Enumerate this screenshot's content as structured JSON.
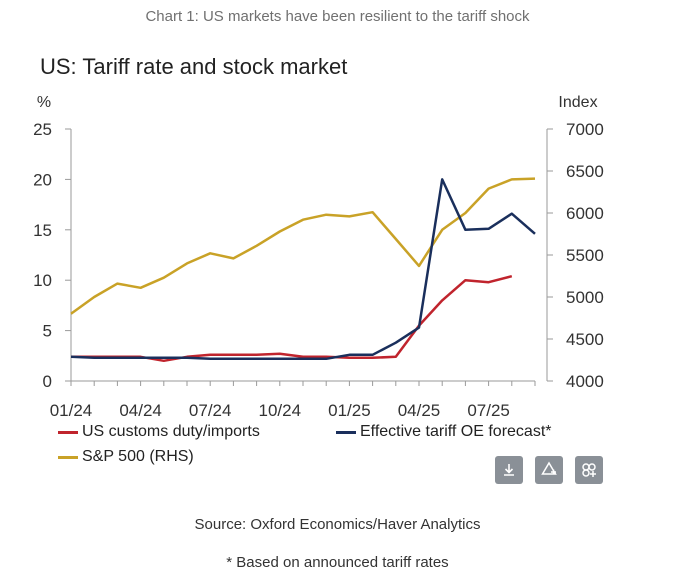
{
  "caption": "Chart 1: US markets have been resilient to the tariff shock",
  "source": "Source: Oxford Economics/Haver Analytics",
  "footnote": "* Based on announced tariff rates",
  "toolbar": {
    "buttons": [
      {
        "icon": "download-icon"
      },
      {
        "icon": "share-icon"
      },
      {
        "icon": "expand-icon"
      }
    ]
  },
  "chart_data": {
    "type": "line",
    "title": "US: Tariff rate and stock market",
    "ylabel_left": "%",
    "ylabel_right": "Index",
    "ylim_left": [
      0,
      25
    ],
    "ylim_right": [
      4000,
      7000
    ],
    "yticks_left": [
      "0",
      "5",
      "10",
      "15",
      "20",
      "25"
    ],
    "yticks_right": [
      "4000",
      "4500",
      "5000",
      "5500",
      "6000",
      "6500",
      "7000"
    ],
    "x_start": "01/24",
    "x_end": "09/25",
    "xticks": [
      "01/24",
      "04/24",
      "07/24",
      "10/24",
      "01/25",
      "04/25",
      "07/25"
    ],
    "series": [
      {
        "name": "US customs duty/imports",
        "axis": "left",
        "color": "#c0242d",
        "x": [
          "01/24",
          "02/24",
          "03/24",
          "04/24",
          "05/24",
          "06/24",
          "07/24",
          "08/24",
          "09/24",
          "10/24",
          "11/24",
          "12/24",
          "01/25",
          "02/25",
          "03/25",
          "04/25",
          "05/25",
          "06/25",
          "07/25",
          "08/25"
        ],
        "values": [
          2.4,
          2.4,
          2.4,
          2.4,
          2.0,
          2.4,
          2.6,
          2.6,
          2.6,
          2.7,
          2.4,
          2.4,
          2.3,
          2.3,
          2.4,
          5.5,
          8.0,
          10.0,
          9.8,
          10.4
        ]
      },
      {
        "name": "Effective tariff OE forecast*",
        "axis": "left",
        "color": "#1a2f5c",
        "x": [
          "01/24",
          "02/24",
          "03/24",
          "04/24",
          "05/24",
          "06/24",
          "07/24",
          "08/24",
          "09/24",
          "10/24",
          "11/24",
          "12/24",
          "01/25",
          "02/25",
          "03/25",
          "04/25",
          "05/25",
          "06/25",
          "07/25",
          "08/25",
          "09/25"
        ],
        "values": [
          2.4,
          2.3,
          2.3,
          2.3,
          2.3,
          2.3,
          2.2,
          2.2,
          2.2,
          2.2,
          2.2,
          2.2,
          2.6,
          2.6,
          3.8,
          5.3,
          20.0,
          15.0,
          15.1,
          16.6,
          14.6
        ]
      },
      {
        "name": "S&P 500 (RHS)",
        "axis": "right",
        "color": "#c9a227",
        "x": [
          "01/24",
          "02/24",
          "03/24",
          "04/24",
          "05/24",
          "06/24",
          "07/24",
          "08/24",
          "09/24",
          "10/24",
          "11/24",
          "12/24",
          "01/25",
          "02/25",
          "03/25",
          "04/25",
          "05/25",
          "06/25",
          "07/25",
          "08/25",
          "09/25"
        ],
        "values": [
          4800,
          5000,
          5160,
          5110,
          5230,
          5400,
          5520,
          5460,
          5610,
          5780,
          5920,
          5980,
          5960,
          6010,
          5690,
          5370,
          5800,
          6000,
          6290,
          6400,
          6410
        ]
      }
    ]
  }
}
